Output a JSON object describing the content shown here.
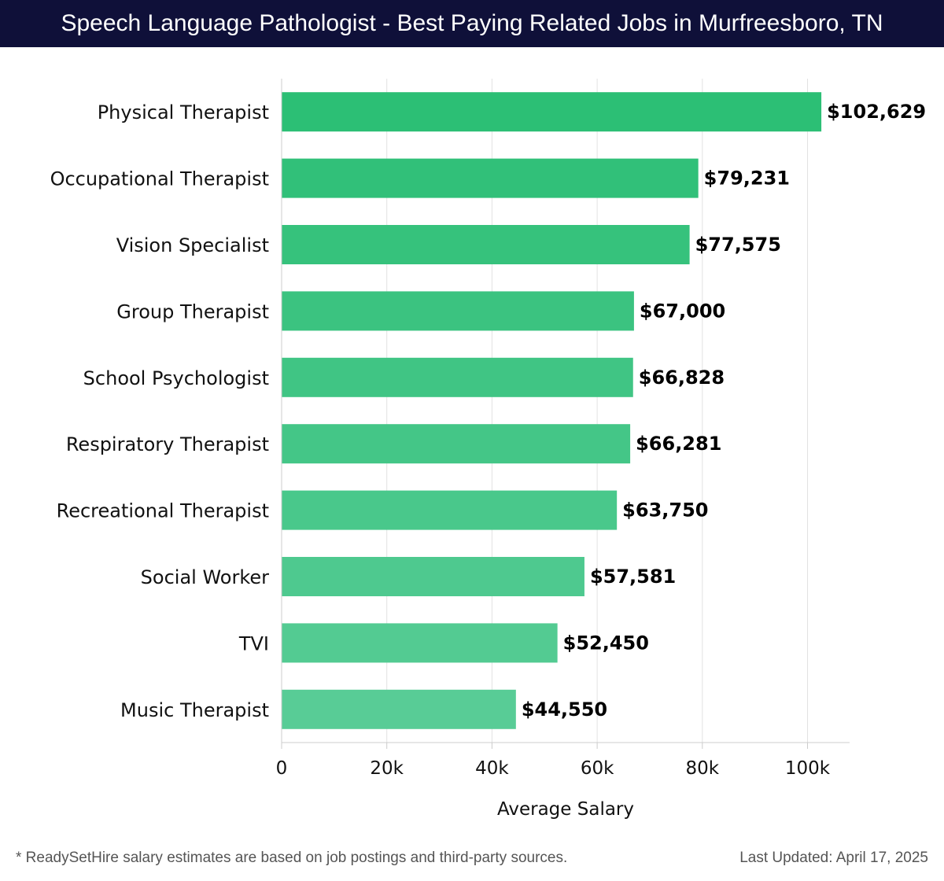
{
  "header": {
    "title": "Speech Language Pathologist - Best Paying Related Jobs in Murfreesboro, TN"
  },
  "chart_data": {
    "type": "bar",
    "orientation": "horizontal",
    "title": "Speech Language Pathologist - Best Paying Related Jobs in Murfreesboro, TN",
    "xlabel": "Average Salary",
    "ylabel": "",
    "xlim": [
      0,
      108000
    ],
    "xticks": [
      0,
      20000,
      40000,
      60000,
      80000,
      100000
    ],
    "xtick_labels": [
      "0",
      "20k",
      "40k",
      "60k",
      "80k",
      "100k"
    ],
    "grid": true,
    "categories": [
      "Physical Therapist",
      "Occupational Therapist",
      "Vision Specialist",
      "Group Therapist",
      "School Psychologist",
      "Respiratory Therapist",
      "Recreational Therapist",
      "Social Worker",
      "TVI",
      "Music Therapist"
    ],
    "values": [
      102629,
      79231,
      77575,
      67000,
      66828,
      66281,
      63750,
      57581,
      52450,
      44550
    ],
    "value_labels": [
      "$102,629",
      "$79,231",
      "$77,575",
      "$67,000",
      "$66,828",
      "$66,281",
      "$63,750",
      "$57,581",
      "$52,450",
      "$44,550"
    ],
    "colors": {
      "bar_top": "#2cbf75",
      "bar_bottom": "#58cc96",
      "grid": "#e2e2e2",
      "axis": "#cccccc"
    }
  },
  "footer": {
    "note": "* ReadySetHire salary estimates are based on job postings and third-party sources.",
    "updated": "Last Updated: April 17, 2025"
  }
}
